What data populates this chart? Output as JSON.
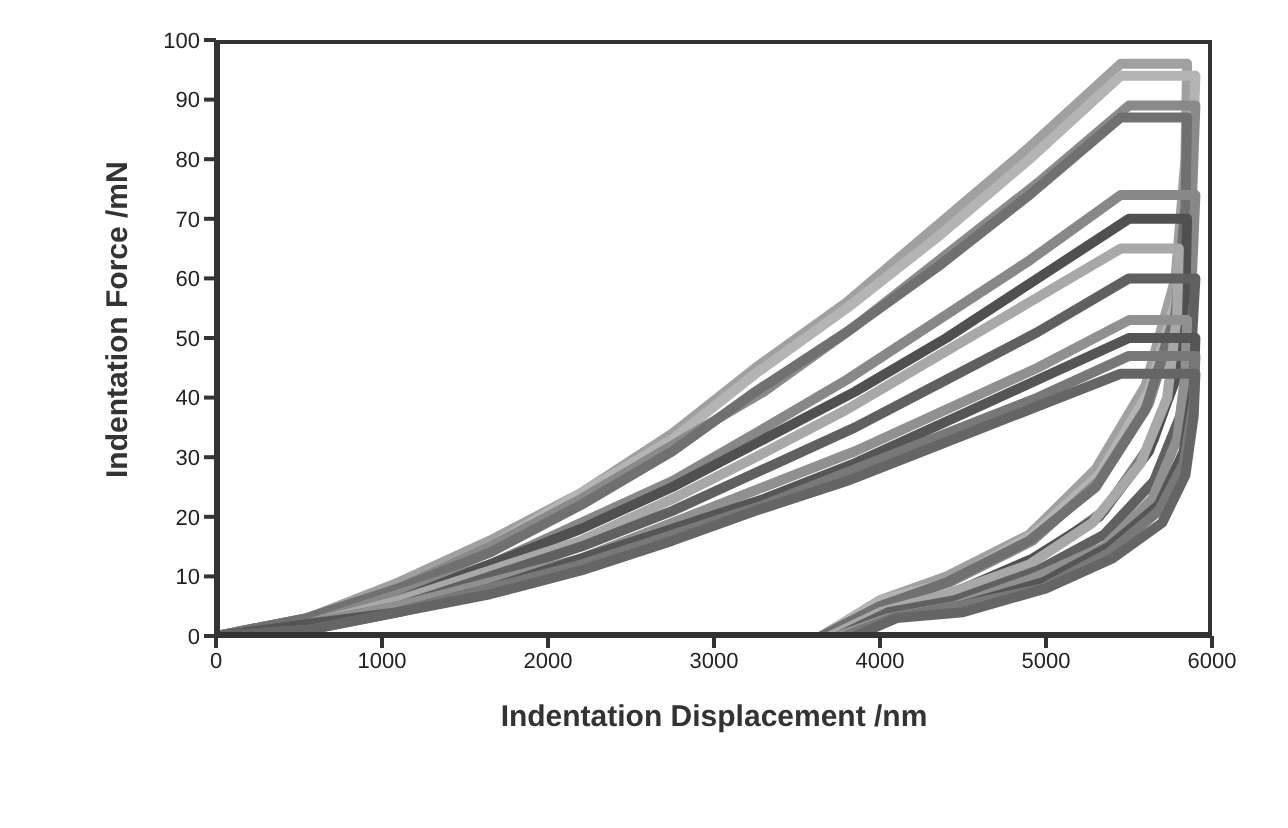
{
  "chart_data": {
    "type": "line",
    "xlabel": "Indentation Displacement /nm",
    "ylabel": "Indentation Force /mN",
    "xlim": [
      0,
      6000
    ],
    "xticks": [
      0,
      1000,
      2000,
      3000,
      4000,
      5000,
      6000
    ],
    "ylim": [
      0,
      100
    ],
    "yticks": [
      0,
      10,
      20,
      30,
      40,
      50,
      60,
      70,
      80,
      90,
      100
    ],
    "line_style": "solid",
    "series": [
      {
        "color": "#a0a0a0",
        "x": [
          0,
          550,
          1100,
          1650,
          2200,
          2750,
          3250,
          3800,
          4350,
          4900,
          5450,
          5850,
          5840,
          5780,
          5600,
          5300,
          4900,
          4400,
          4000,
          3650
        ],
        "values": [
          0,
          3,
          9,
          16,
          24,
          34,
          45,
          56,
          69,
          82,
          96,
          96,
          80,
          60,
          42,
          28,
          17,
          10,
          6,
          0
        ]
      },
      {
        "color": "#b4b4b4",
        "x": [
          0,
          550,
          1100,
          1650,
          2200,
          2750,
          3250,
          3800,
          4350,
          4900,
          5450,
          5900,
          5880,
          5800,
          5620,
          5320,
          4920,
          4420,
          4000,
          3650
        ],
        "values": [
          0,
          3,
          8,
          15,
          24,
          33,
          44,
          55,
          67,
          80,
          94,
          94,
          78,
          58,
          41,
          27,
          17,
          9,
          6,
          0
        ]
      },
      {
        "color": "#8a8a8a",
        "x": [
          0,
          550,
          1100,
          1650,
          2200,
          2750,
          3300,
          3850,
          4400,
          4950,
          5500,
          5900,
          5880,
          5800,
          5620,
          5320,
          4920,
          4420,
          4000,
          3650
        ],
        "values": [
          0,
          3,
          8,
          15,
          23,
          32,
          41,
          52,
          64,
          76,
          89,
          89,
          74,
          55,
          39,
          26,
          16,
          9,
          5,
          0
        ]
      },
      {
        "color": "#707070",
        "x": [
          0,
          550,
          1100,
          1650,
          2200,
          2750,
          3250,
          3800,
          4350,
          4900,
          5450,
          5850,
          5840,
          5780,
          5600,
          5300,
          4900,
          4400,
          4000,
          3650
        ],
        "values": [
          0,
          3,
          8,
          14,
          22,
          31,
          41,
          51,
          62,
          74,
          87,
          87,
          72,
          54,
          38,
          25,
          16,
          9,
          5,
          0
        ]
      },
      {
        "color": "#888888",
        "x": [
          0,
          550,
          1100,
          1650,
          2200,
          2750,
          3250,
          3800,
          4350,
          4900,
          5450,
          5900,
          5880,
          5810,
          5650,
          5350,
          4950,
          4450,
          4050,
          3750
        ],
        "values": [
          0,
          2,
          7,
          12,
          19,
          26,
          34,
          43,
          53,
          63,
          74,
          74,
          61,
          46,
          33,
          21,
          13,
          7,
          4,
          0
        ]
      },
      {
        "color": "#505050",
        "x": [
          0,
          550,
          1100,
          1650,
          2200,
          2750,
          3300,
          3850,
          4400,
          4950,
          5500,
          5850,
          5840,
          5780,
          5620,
          5320,
          4920,
          4420,
          4000,
          3700
        ],
        "values": [
          0,
          2,
          6,
          12,
          18,
          25,
          33,
          41,
          50,
          60,
          70,
          70,
          58,
          43,
          31,
          20,
          13,
          7,
          4,
          0
        ]
      },
      {
        "color": "#a8a8a8",
        "x": [
          0,
          550,
          1100,
          1650,
          2200,
          2750,
          3250,
          3800,
          4350,
          4900,
          5450,
          5800,
          5790,
          5730,
          5570,
          5280,
          4900,
          4400,
          4000,
          3700
        ],
        "values": [
          0,
          2,
          6,
          11,
          16,
          23,
          30,
          38,
          47,
          56,
          65,
          65,
          54,
          40,
          29,
          19,
          12,
          7,
          4,
          0
        ]
      },
      {
        "color": "#606060",
        "x": [
          0,
          550,
          1100,
          1650,
          2200,
          2750,
          3300,
          3850,
          4400,
          4950,
          5500,
          5900,
          5880,
          5810,
          5650,
          5350,
          4950,
          4450,
          4050,
          3750
        ],
        "values": [
          0,
          2,
          5,
          10,
          15,
          21,
          28,
          35,
          43,
          51,
          60,
          60,
          50,
          37,
          26,
          17,
          11,
          6,
          4,
          0
        ]
      },
      {
        "color": "#909090",
        "x": [
          0,
          550,
          1100,
          1650,
          2200,
          2750,
          3300,
          3850,
          4400,
          4950,
          5500,
          5850,
          5840,
          5790,
          5640,
          5350,
          4950,
          4450,
          4050,
          3750
        ],
        "values": [
          0,
          2,
          5,
          9,
          13,
          19,
          25,
          31,
          38,
          45,
          53,
          53,
          44,
          33,
          23,
          15,
          10,
          5,
          3,
          0
        ]
      },
      {
        "color": "#555555",
        "x": [
          0,
          550,
          1100,
          1650,
          2200,
          2750,
          3300,
          3850,
          4400,
          4950,
          5500,
          5900,
          5890,
          5830,
          5680,
          5380,
          4980,
          4480,
          4080,
          3800
        ],
        "values": [
          0,
          2,
          4,
          8,
          13,
          18,
          23,
          29,
          36,
          43,
          50,
          50,
          42,
          31,
          22,
          15,
          9,
          5,
          3,
          0
        ]
      },
      {
        "color": "#787878",
        "x": [
          0,
          550,
          1100,
          1650,
          2200,
          2750,
          3300,
          3850,
          4400,
          4950,
          5500,
          5900,
          5890,
          5830,
          5680,
          5380,
          4980,
          4480,
          4080,
          3800
        ],
        "values": [
          0,
          1,
          4,
          8,
          12,
          17,
          22,
          28,
          34,
          40,
          47,
          47,
          39,
          29,
          21,
          14,
          8,
          5,
          3,
          0
        ]
      },
      {
        "color": "#656565",
        "x": [
          0,
          550,
          1100,
          1650,
          2200,
          2750,
          3250,
          3800,
          4350,
          4900,
          5450,
          5900,
          5890,
          5840,
          5700,
          5400,
          5000,
          4500,
          4100,
          3850
        ],
        "values": [
          0,
          1,
          4,
          7,
          11,
          16,
          21,
          26,
          32,
          38,
          44,
          44,
          37,
          27,
          19,
          13,
          8,
          4,
          3,
          0
        ]
      }
    ]
  }
}
